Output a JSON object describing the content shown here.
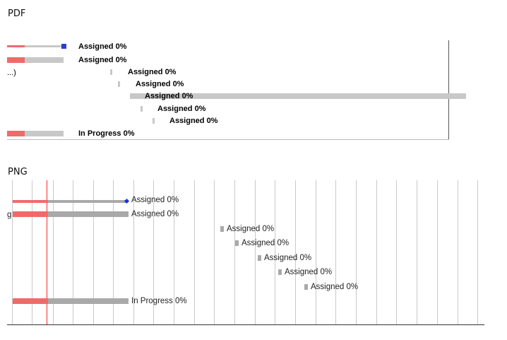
{
  "sections": {
    "pdf_title": "PDF",
    "png_title": "PNG"
  },
  "pdf": {
    "truncated_text": "...)",
    "tasks": [
      {
        "status": "Assigned 0%",
        "progress": 0,
        "has_marker": true
      },
      {
        "status": "Assigned 0%",
        "progress": 0,
        "has_marker": false
      },
      {
        "status": "Assigned 0%",
        "progress": 0,
        "has_marker": false
      },
      {
        "status": "Assigned 0%",
        "progress": 0,
        "has_marker": false
      },
      {
        "status": "Assigned 0%",
        "progress": 0,
        "has_marker": false
      },
      {
        "status": "Assigned 0%",
        "progress": 0,
        "has_marker": false
      },
      {
        "status": "Assigned 0%",
        "progress": 0,
        "has_marker": false
      },
      {
        "status": "In Progress 0%",
        "progress": 0,
        "has_marker": false
      }
    ]
  },
  "png": {
    "truncated_text": "g",
    "tasks": [
      {
        "status": "Assigned 0%",
        "progress": 0,
        "has_marker": true
      },
      {
        "status": "Assigned 0%",
        "progress": 0,
        "has_marker": false
      },
      {
        "status": "Assigned 0%",
        "progress": 0,
        "has_marker": false
      },
      {
        "status": "Assigned 0%",
        "progress": 0,
        "has_marker": false
      },
      {
        "status": "Assigned 0%",
        "progress": 0,
        "has_marker": false
      },
      {
        "status": "Assigned 0%",
        "progress": 0,
        "has_marker": false
      },
      {
        "status": "Assigned 0%",
        "progress": 0,
        "has_marker": false
      },
      {
        "status": "In Progress 0%",
        "progress": 0,
        "has_marker": false
      }
    ]
  },
  "colors": {
    "done_bar": "#f06a6a",
    "remaining_bar_pdf": "#c8c8c8",
    "remaining_bar_png": "#a9a9a9",
    "marker_pdf": "#2b3bd6",
    "marker_png": "#1a2fe0",
    "today_line": "#ff2a2a",
    "grid": "#c9c9c9"
  }
}
